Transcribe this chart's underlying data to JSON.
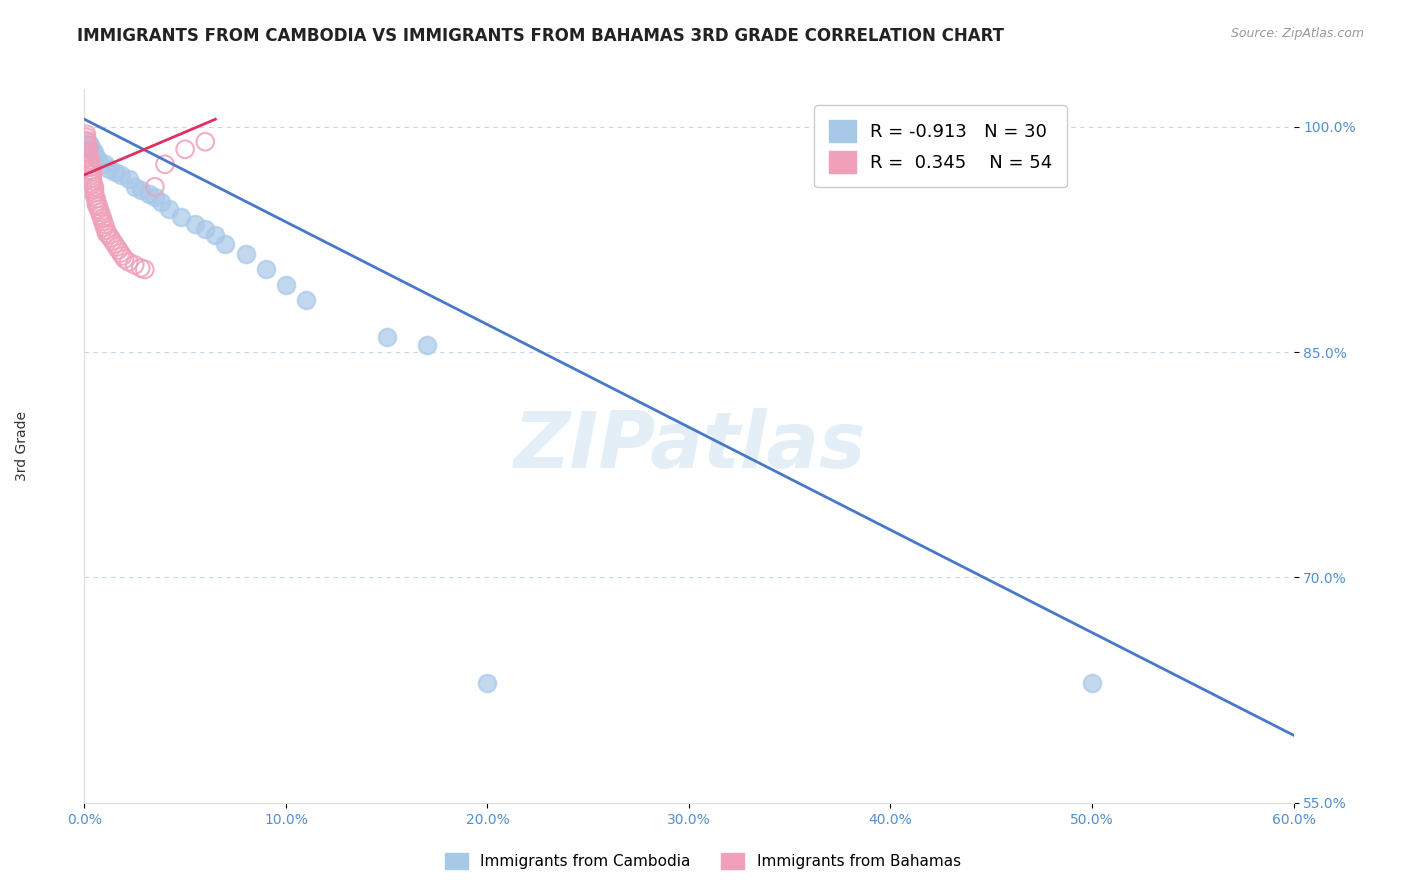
{
  "title": "IMMIGRANTS FROM CAMBODIA VS IMMIGRANTS FROM BAHAMAS 3RD GRADE CORRELATION CHART",
  "source": "Source: ZipAtlas.com",
  "xlabel_cambodia": "Immigrants from Cambodia",
  "xlabel_bahamas": "Immigrants from Bahamas",
  "ylabel": "3rd Grade",
  "xlim": [
    0.0,
    0.6
  ],
  "ylim": [
    0.585,
    1.025
  ],
  "yticks": [
    0.55,
    0.7,
    0.85,
    1.0
  ],
  "ytick_labels": [
    "55.0%",
    "70.0%",
    "85.0%",
    "100.0%"
  ],
  "xticks": [
    0.0,
    0.1,
    0.2,
    0.3,
    0.4,
    0.5,
    0.6
  ],
  "xtick_labels": [
    "0.0%",
    "10.0%",
    "20.0%",
    "30.0%",
    "40.0%",
    "50.0%",
    "60.0%"
  ],
  "cambodia_color": "#a8c8e8",
  "bahamas_color": "#f0a0b8",
  "line_cambodia_color": "#4878c8",
  "line_bahamas_color": "#e03060",
  "R_cambodia": -0.913,
  "N_cambodia": 30,
  "R_bahamas": 0.345,
  "N_bahamas": 54,
  "watermark": "ZIPatlas",
  "background_color": "#ffffff",
  "title_fontsize": 12,
  "axis_label_fontsize": 10,
  "tick_fontsize": 10,
  "legend_fontsize": 13,
  "cambodia_scatter_x": [
    0.002,
    0.003,
    0.004,
    0.005,
    0.006,
    0.007,
    0.01,
    0.012,
    0.015,
    0.018,
    0.022,
    0.025,
    0.028,
    0.032,
    0.035,
    0.038,
    0.042,
    0.048,
    0.055,
    0.06,
    0.065,
    0.07,
    0.08,
    0.09,
    0.1,
    0.11,
    0.15,
    0.17,
    0.2,
    0.5
  ],
  "cambodia_scatter_y": [
    0.99,
    0.988,
    0.985,
    0.983,
    0.98,
    0.978,
    0.975,
    0.972,
    0.97,
    0.968,
    0.965,
    0.96,
    0.958,
    0.955,
    0.953,
    0.95,
    0.945,
    0.94,
    0.935,
    0.932,
    0.928,
    0.922,
    0.915,
    0.905,
    0.895,
    0.885,
    0.86,
    0.855,
    0.63,
    0.63
  ],
  "bahamas_scatter_x": [
    0.001,
    0.001,
    0.001,
    0.001,
    0.001,
    0.002,
    0.002,
    0.002,
    0.002,
    0.002,
    0.003,
    0.003,
    0.003,
    0.003,
    0.003,
    0.004,
    0.004,
    0.004,
    0.004,
    0.004,
    0.005,
    0.005,
    0.005,
    0.005,
    0.006,
    0.006,
    0.006,
    0.007,
    0.007,
    0.008,
    0.008,
    0.009,
    0.009,
    0.01,
    0.01,
    0.011,
    0.011,
    0.012,
    0.013,
    0.014,
    0.015,
    0.016,
    0.017,
    0.018,
    0.019,
    0.02,
    0.022,
    0.025,
    0.028,
    0.03,
    0.035,
    0.04,
    0.05,
    0.06
  ],
  "bahamas_scatter_y": [
    0.995,
    0.993,
    0.991,
    0.99,
    0.988,
    0.987,
    0.985,
    0.983,
    0.982,
    0.98,
    0.978,
    0.976,
    0.975,
    0.973,
    0.971,
    0.97,
    0.968,
    0.966,
    0.964,
    0.962,
    0.96,
    0.958,
    0.956,
    0.954,
    0.952,
    0.95,
    0.948,
    0.947,
    0.945,
    0.943,
    0.941,
    0.939,
    0.937,
    0.935,
    0.933,
    0.931,
    0.929,
    0.928,
    0.926,
    0.924,
    0.922,
    0.92,
    0.918,
    0.916,
    0.914,
    0.912,
    0.91,
    0.908,
    0.906,
    0.905,
    0.96,
    0.975,
    0.985,
    0.99
  ],
  "cam_line_x0": 0.0,
  "cam_line_y0": 1.005,
  "cam_line_x1": 0.6,
  "cam_line_y1": 0.595,
  "bah_line_x0": 0.0,
  "bah_line_y0": 0.968,
  "bah_line_x1": 0.065,
  "bah_line_y1": 1.005
}
